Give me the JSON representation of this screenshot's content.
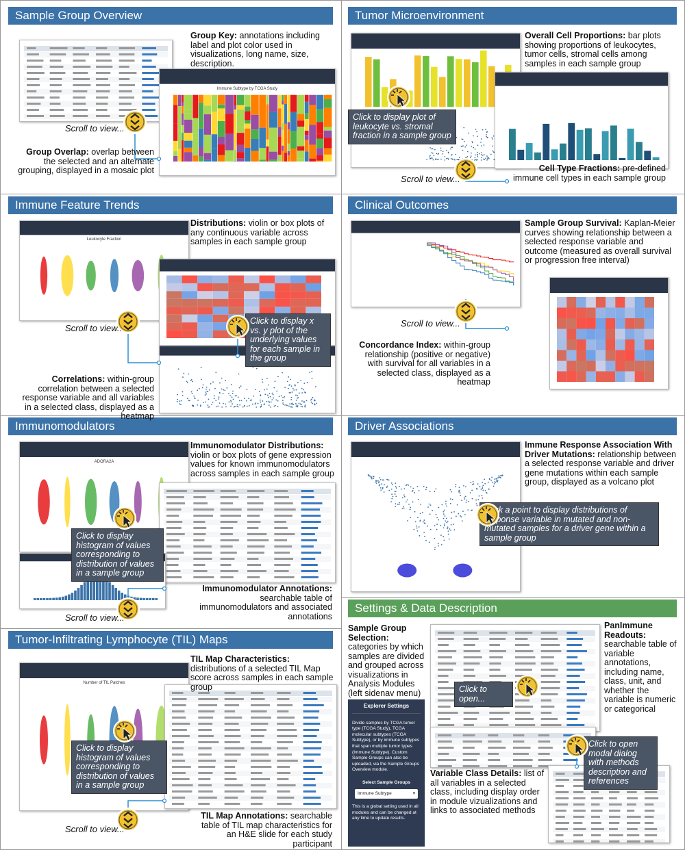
{
  "panels": [
    {
      "title": "Sample Group Overview",
      "annotations": [
        {
          "lead": "Group Key:",
          "text": "annotations including label and plot color used in visualizations, long name, size, description."
        },
        {
          "lead": "Group Overlap:",
          "text": "overlap between the selected and an alternate grouping, displayed in a mosaic plot"
        }
      ],
      "callouts": [],
      "scroll": "Scroll to view...",
      "figure_titles": [
        "Immune Subtype by TCGA Study"
      ]
    },
    {
      "title": "Tumor Microenvironment",
      "annotations": [
        {
          "lead": "Overall Cell Proportions:",
          "text": "bar plots showing proportions of leukocytes, tumor cells, stromal cells among samples in each sample group"
        },
        {
          "lead": "Cell Type Fractions:",
          "text": "pre-defined immune cell types in each sample group"
        }
      ],
      "callouts": [
        "Click to display plot of leukocyte vs. stromal fraction in a sample group"
      ],
      "scroll": "Scroll to view...",
      "figure_titles": []
    },
    {
      "title": "Immune Feature Trends",
      "annotations": [
        {
          "lead": "Distributions:",
          "text": "violin or box plots of any continuous variable across samples in each sample group"
        },
        {
          "lead": "Correlations:",
          "text": "within-group correlation between a selected response variable and all variables in a selected class, displayed as a heatmap"
        }
      ],
      "callouts": [
        "Click to display x vs. y plot of the underlying values for each sample in the group"
      ],
      "scroll": "Scroll to view...",
      "figure_titles": [
        "Leukocyte Fraction"
      ]
    },
    {
      "title": "Clinical Outcomes",
      "annotations": [
        {
          "lead": "Sample Group Survival:",
          "text": "Kaplan-Meier curves showing relationship between a selected response variable and outcome (measured as overall survival or progression free interval)"
        },
        {
          "lead": "Concordance Index:",
          "text": "within-group relationship (positive or negative) with survival for all variables in a selected class, displayed as a heatmap"
        }
      ],
      "callouts": [],
      "scroll": "Scroll to view...",
      "figure_titles": []
    },
    {
      "title": "Immunomodulators",
      "annotations": [
        {
          "lead": "Immunomodulator Distributions:",
          "text": "violin or box plots of gene expression values for known immunomodulators across samples in each sample group"
        },
        {
          "lead": "Immunomodulator Annotations:",
          "text": "searchable table of immunomodulators and associated annotations"
        }
      ],
      "callouts": [
        "Click to display histogram of values corresponding to distribution of values in a sample group"
      ],
      "scroll": "Scroll to view...",
      "figure_titles": [
        "ADORA2A"
      ]
    },
    {
      "title": "Driver Associations",
      "annotations": [
        {
          "lead": "Immune Response Association With Driver Mutations:",
          "text": "relationship between a selected response variable and driver gene mutations within each sample group, displayed as a volcano plot"
        }
      ],
      "callouts": [
        "Click a point to display distributions of response variable in mutated and non-mutated samples for a driver gene within a sample group"
      ],
      "figure_titles": []
    },
    {
      "title": "Tumor-Infiltrating Lymphocyte (TIL) Maps",
      "annotations": [
        {
          "lead": "TIL Map Characteristics:",
          "text": "distributions of a selected TIL Map score across samples in each sample group"
        },
        {
          "lead": "TIL Map Annotations:",
          "text": "searchable table of TIL map characteristics for an H&E slide for each study participant"
        }
      ],
      "callouts": [
        "Click to display histogram of values corresponding to distribution of values in a sample group"
      ],
      "scroll": "Scroll to view...",
      "figure_titles": [
        "Number of TIL Patches"
      ]
    },
    {
      "title": "Settings & Data Description",
      "annotations": [
        {
          "lead": "Sample Group Selection:",
          "text": "categories by which samples are divided and grouped across visualizations in Analysis Modules (left sidenav menu)"
        },
        {
          "lead": "PanImmune Readouts:",
          "text": "searchable table of variable annotations, including name, class, unit, and whether the variable is numeric or categorical"
        },
        {
          "lead": "Variable Class Details:",
          "text": "list of all variables in a selected class, including display order in module vizualizations and links to associated methods"
        }
      ],
      "callouts": [
        "Click to open...",
        "Click to open modal dialog with methods description and references"
      ],
      "figure_titles": []
    }
  ],
  "explorer_settings": {
    "title": "Explorer Settings",
    "text": "Divide samples by TCGA tumor type (TCGA Study), TCGA molecular subtypes (TCGA Subtype), or by immune subtypes that span multiple tumor types (Immune Subtype). Custom Sample Groups can also be uploaded, via the Sample Groups Overview module.",
    "select_label": "Select Sample Groups",
    "select_value": "Immune Subtype",
    "note": "This is a global setting used in all modules and can be changed at any time to update results."
  }
}
